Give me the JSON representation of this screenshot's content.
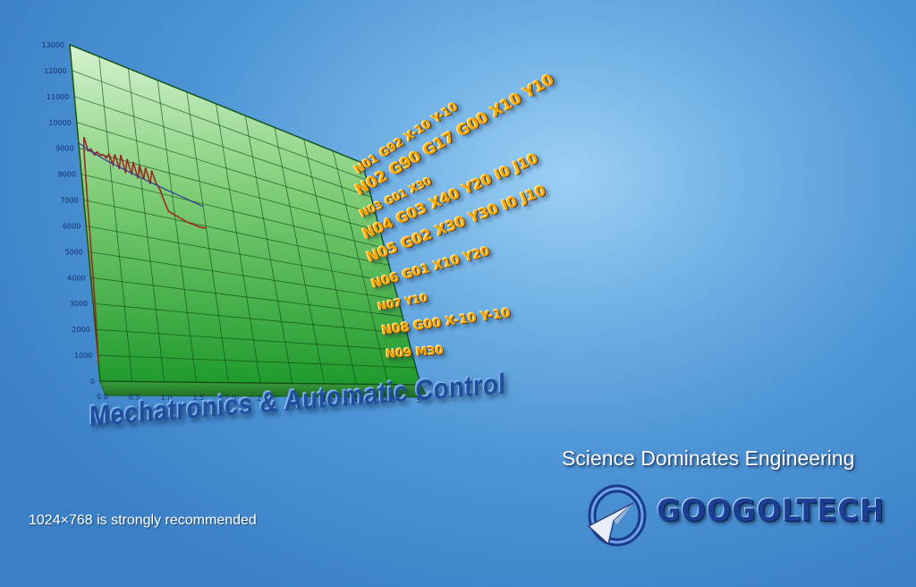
{
  "chart_data": {
    "type": "line",
    "x": [
      0.0,
      0.03,
      0.06,
      0.08,
      0.1,
      0.12,
      0.15,
      0.2,
      0.25,
      0.3,
      0.35,
      0.4,
      0.45,
      0.5,
      0.55,
      0.6,
      0.65,
      0.7,
      0.75,
      0.8,
      0.85,
      0.9,
      0.95,
      1.0,
      1.05,
      1.1,
      1.15,
      1.2,
      1.25,
      1.3,
      1.35,
      1.4,
      1.5,
      1.6,
      1.7,
      1.8,
      1.9,
      2.0
    ],
    "series": [
      {
        "values": [
          700,
          3000,
          7000,
          9000,
          9500,
          9300,
          9000,
          9100,
          8900,
          9050,
          8950,
          9000,
          8900,
          9100,
          8700,
          9150,
          8600,
          9200,
          8500,
          9100,
          8500,
          9050,
          8400,
          9000,
          8450,
          8950,
          8300,
          8900,
          8400,
          8200,
          7700,
          7300,
          7200,
          7100,
          7000,
          6950,
          6900,
          6900
        ]
      },
      {
        "values": [
          9200,
          9180,
          9150,
          9120,
          9100,
          9080,
          9060,
          9000,
          8960,
          8920,
          8880,
          8840,
          8800,
          8770,
          8740,
          8710,
          8680,
          8650,
          8620,
          8590,
          8560,
          8530,
          8500,
          8470,
          8440,
          8410,
          8380,
          8350,
          8320,
          8290,
          8260,
          8230,
          8180,
          8120,
          8060,
          8000,
          7940,
          7880
        ]
      }
    ],
    "yticks": [
      "0",
      "1000",
      "2000",
      "3000",
      "4000",
      "5000",
      "6000",
      "7000",
      "8000",
      "9000",
      "10000",
      "11000",
      "12000",
      "13000"
    ],
    "xticks": [
      "0.0",
      "0.5",
      "1.0",
      "1.5",
      "2.0",
      "2.5",
      "3.0",
      "3.5",
      "4.0",
      "4.5",
      "5"
    ],
    "ylim": [
      0,
      13000
    ],
    "xlim": [
      0,
      5
    ],
    "grid": true
  },
  "gcode_lines": [
    "N01 G92 X-10 Y-10",
    "N02 G90 G17 G00 X10 Y10",
    "N03 G01 X30",
    "N04 G03 X40 Y20 I0 J10",
    "N05 G02 X30 Y30 I0 J10",
    "N06 G01 X10 Y20",
    "N07 Y10",
    "N08 G00 X-10 Y-10",
    "N09 M30"
  ],
  "headline": "Mechatronics & Automatic Control",
  "tagline": "Science Dominates Engineering",
  "brand": "GOOGOLTECH",
  "resolution_note": "1024×768 is strongly recommended",
  "colors": {
    "plot_green_top": "#d6f2cf",
    "plot_green_bottom": "#1f9a2c",
    "series_red": "#a02626",
    "series_blue": "#2d3a9a",
    "gcode_orange": "#f6a800",
    "brand_blue": "#1a3f93"
  },
  "icons": [
    "googoltech-logo-icon"
  ]
}
